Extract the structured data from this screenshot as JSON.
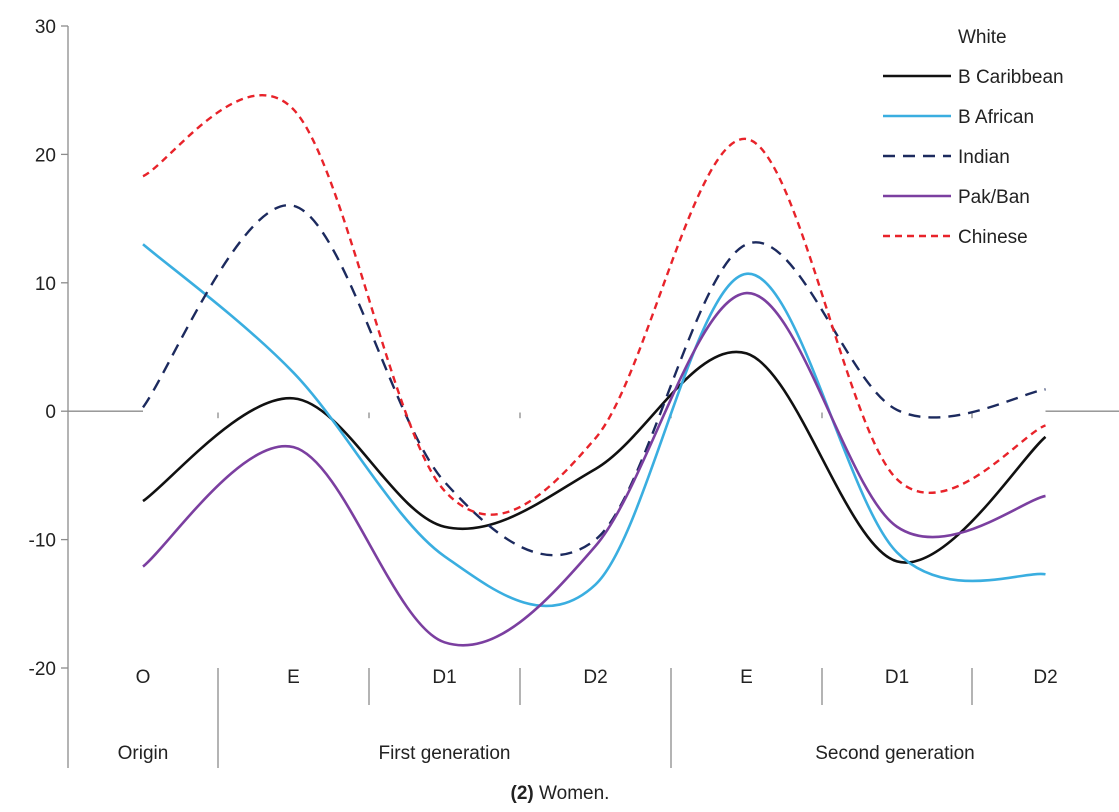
{
  "chart_data": {
    "type": "line",
    "categories": [
      "O",
      "E",
      "D1",
      "D2",
      "E",
      "D1",
      "D2"
    ],
    "groups": [
      {
        "label": "Origin",
        "span": [
          0,
          0
        ]
      },
      {
        "label": "First generation",
        "span": [
          1,
          3
        ]
      },
      {
        "label": "Second generation",
        "span": [
          4,
          6
        ]
      }
    ],
    "ylim": [
      -20,
      30
    ],
    "yticks": [
      30,
      20,
      10,
      0,
      -10,
      -20
    ],
    "series": [
      {
        "name": "White",
        "color": "#ffffff",
        "dash": "solid",
        "values": [
          0,
          0,
          0,
          0,
          0,
          0,
          0
        ]
      },
      {
        "name": "B Caribbean",
        "color": "#111111",
        "dash": "solid",
        "values": [
          -7,
          1,
          -9,
          -4.5,
          4.5,
          -11.7,
          -2
        ]
      },
      {
        "name": "B African",
        "color": "#3aaee0",
        "dash": "solid",
        "values": [
          13,
          3,
          -11.3,
          -13.5,
          10.7,
          -11,
          -12.7
        ]
      },
      {
        "name": "Indian",
        "color": "#1c2a5e",
        "dash": "dashed",
        "values": [
          0.3,
          16,
          -5.5,
          -10,
          13,
          0.1,
          1.7
        ]
      },
      {
        "name": "Pak/Ban",
        "color": "#7b3fa0",
        "dash": "solid",
        "values": [
          -12.1,
          -2.8,
          -18,
          -10.5,
          9.2,
          -9,
          -6.6
        ]
      },
      {
        "name": "Chinese",
        "color": "#e8232a",
        "dash": "dashed",
        "values": [
          18.3,
          23.5,
          -6.2,
          -2.1,
          21.2,
          -5.3,
          -1.1
        ]
      }
    ],
    "legend_position": "top-right",
    "grid": false
  },
  "caption": {
    "number": "(2)",
    "text": " Women."
  }
}
